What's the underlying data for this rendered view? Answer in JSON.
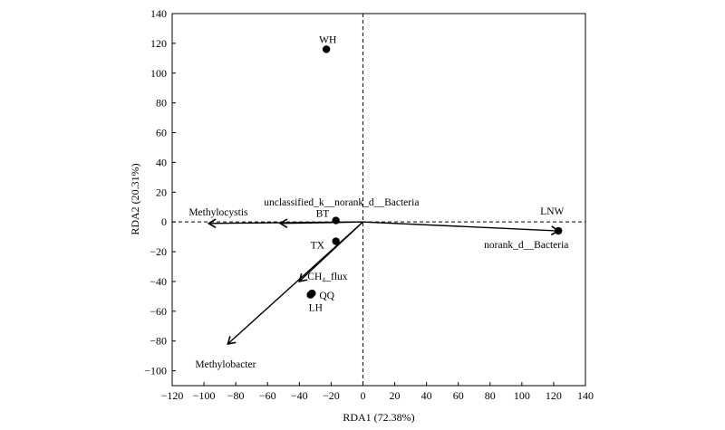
{
  "chart_data": {
    "type": "scatter",
    "title": "",
    "xlabel": "RDA1 (72.38%)",
    "ylabel": "RDA2 (20.31%)",
    "xlim": [
      -120,
      140
    ],
    "ylim": [
      -110,
      140
    ],
    "xticks": [
      -120,
      -100,
      -80,
      -60,
      -40,
      -20,
      0,
      20,
      40,
      60,
      80,
      100,
      120,
      140
    ],
    "yticks": [
      -100,
      -80,
      -60,
      -40,
      -20,
      0,
      20,
      40,
      60,
      80,
      100,
      120,
      140
    ],
    "grid": false,
    "zero_lines": "dashed",
    "sites": [
      {
        "label": "WH",
        "x": -23,
        "y": 116
      },
      {
        "label": "BT",
        "x": -17,
        "y": 1
      },
      {
        "label": "TX",
        "x": -17,
        "y": -13
      },
      {
        "label": "QQ",
        "x": -32,
        "y": -48
      },
      {
        "label": "LH",
        "x": -33,
        "y": -49
      },
      {
        "label": "LNW",
        "x": 123,
        "y": -6
      }
    ],
    "arrows": [
      {
        "label": "Methylocystis",
        "x": -97,
        "y": -1
      },
      {
        "label": "unclassified_k__norank_d__Bacteria",
        "x": -52,
        "y": -1
      },
      {
        "label": "norank_d__Bacteria",
        "x": 123,
        "y": -6
      },
      {
        "label": "CH₄_flux",
        "x": -40,
        "y": -40
      },
      {
        "label": "Methylobacter",
        "x": -85,
        "y": -82
      }
    ]
  }
}
